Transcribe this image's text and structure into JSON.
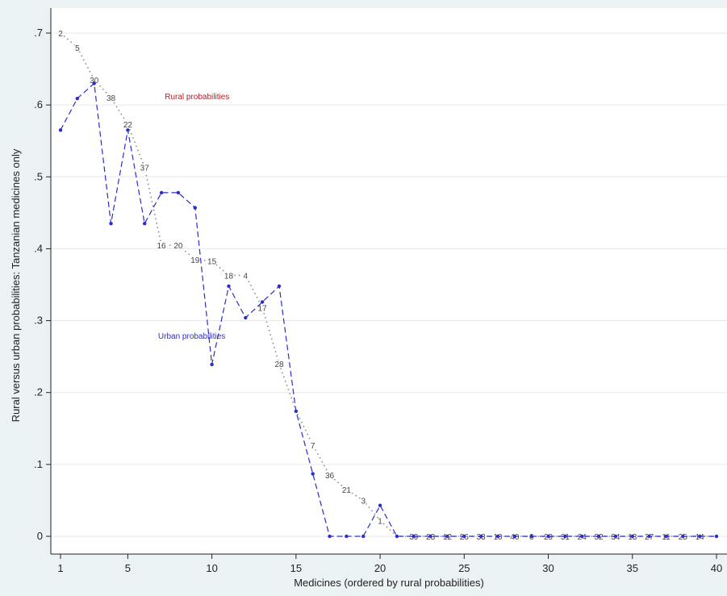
{
  "chart_data": {
    "type": "line",
    "xlabel": "Medicines (ordered by rural probabilities)",
    "ylabel": "Rural versus urban probabilities: Tanzanian medicines only",
    "xlim": [
      0,
      40
    ],
    "ylim": [
      0,
      0.7
    ],
    "x_ticks": [
      1,
      5,
      10,
      15,
      20,
      25,
      30,
      35,
      40
    ],
    "x_tick_labels": [
      "1",
      "5",
      "10",
      "15",
      "20",
      "25",
      "30",
      "35",
      "40"
    ],
    "y_ticks": [
      0,
      0.1,
      0.2,
      0.3,
      0.4,
      0.5,
      0.6,
      0.7
    ],
    "y_tick_labels": [
      "0",
      ".1",
      ".2",
      ".3",
      ".4",
      ".5",
      ".6",
      ".7"
    ],
    "grid": "horizontal",
    "annotations": [
      {
        "text": "Rural probabilities",
        "x": 7.2,
        "y": 0.608,
        "color": "#b0202a"
      },
      {
        "text": "Urban probabilities",
        "x": 6.8,
        "y": 0.275,
        "color": "#2b2ec8"
      }
    ],
    "series": [
      {
        "name": "Rural probabilities",
        "style": "dotted",
        "color": "#8a8a8a",
        "x": [
          1,
          2,
          3,
          4,
          5,
          6,
          7,
          8,
          9,
          10,
          11,
          12,
          13,
          14,
          15,
          16,
          17,
          18,
          19,
          20,
          21,
          22,
          23,
          24,
          25,
          26,
          27,
          28,
          29,
          30,
          31,
          32,
          33,
          34,
          35,
          36,
          37,
          38,
          39,
          40
        ],
        "values": [
          0.7,
          0.68,
          0.635,
          0.61,
          0.573,
          0.513,
          0.405,
          0.405,
          0.385,
          0.383,
          0.363,
          0.363,
          0.318,
          0.24,
          0.175,
          0.127,
          0.085,
          0.065,
          0.05,
          0.022,
          0,
          0,
          0,
          0,
          0,
          0,
          0,
          0,
          0,
          0,
          0,
          0,
          0,
          0,
          0,
          0,
          0,
          0,
          0,
          0
        ],
        "point_labels": [
          "2",
          "5",
          "30",
          "38",
          "22",
          "37",
          "16",
          "20",
          "19",
          "15",
          "18",
          "4",
          "17",
          "28",
          "",
          "7",
          "36",
          "21",
          "3",
          "1",
          "",
          "39",
          "23",
          "12",
          "26",
          "33",
          "10",
          "40",
          "6",
          "29",
          "31",
          "24",
          "32",
          "34",
          "13",
          "27",
          "11",
          "25",
          "14",
          ""
        ]
      },
      {
        "name": "Urban probabilities",
        "style": "dashed",
        "color": "#2b2ec8",
        "x": [
          1,
          2,
          3,
          4,
          5,
          6,
          7,
          8,
          9,
          10,
          11,
          12,
          13,
          14,
          15,
          16,
          17,
          18,
          19,
          20,
          21,
          22,
          23,
          24,
          25,
          26,
          27,
          28,
          29,
          30,
          31,
          32,
          33,
          34,
          35,
          36,
          37,
          38,
          39,
          40
        ],
        "values": [
          0.565,
          0.609,
          0.63,
          0.435,
          0.565,
          0.435,
          0.478,
          0.478,
          0.457,
          0.239,
          0.348,
          0.304,
          0.326,
          0.348,
          0.174,
          0.087,
          0,
          0,
          0,
          0.043,
          0,
          0,
          0,
          0,
          0,
          0,
          0,
          0,
          0,
          0,
          0,
          0,
          0,
          0,
          0,
          0,
          0,
          0,
          0,
          0
        ]
      }
    ]
  }
}
